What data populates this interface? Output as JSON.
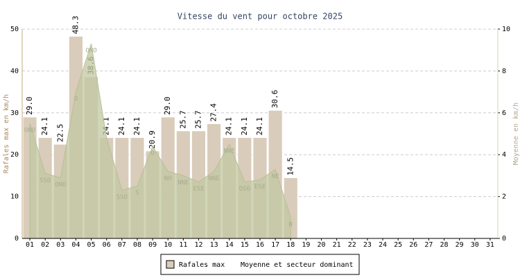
{
  "chart_data": {
    "type": "bar",
    "title": "Vitesse du vent pour octobre 2025",
    "y_label": "Rafales max en km/h",
    "y2_label": "Moyenne en km/h",
    "categories": [
      "01",
      "02",
      "03",
      "04",
      "05",
      "06",
      "07",
      "08",
      "09",
      "10",
      "11",
      "12",
      "13",
      "14",
      "15",
      "16",
      "17",
      "18",
      "19",
      "20",
      "21",
      "22",
      "23",
      "24",
      "25",
      "26",
      "27",
      "28",
      "29",
      "30",
      "31"
    ],
    "series": [
      {
        "name": "Rafales max",
        "color": "#d9ccba",
        "axis": "y",
        "values": [
          29.0,
          24.1,
          22.5,
          48.3,
          38.6,
          24.1,
          24.1,
          24.1,
          20.9,
          29.0,
          25.7,
          25.7,
          27.4,
          24.1,
          24.1,
          24.1,
          30.6,
          14.5,
          null,
          null,
          null,
          null,
          null,
          null,
          null,
          null,
          null,
          null,
          null,
          null,
          null
        ],
        "value_labels": [
          "29.0",
          "24.1",
          "22.5",
          "48.3",
          "38.6",
          "24.1",
          "24.1",
          "24.1",
          "20.9",
          "29.0",
          "25.7",
          "25.7",
          "27.4",
          "24.1",
          "24.1",
          "24.1",
          "30.6",
          "14.5",
          null,
          null,
          null,
          null,
          null,
          null,
          null,
          null,
          null,
          null,
          null,
          null,
          null
        ]
      },
      {
        "name": "Moyenne et secteur dominant",
        "color": "#c2c8a2",
        "axis": "y2",
        "type": "area",
        "values": [
          5.5,
          3.1,
          2.9,
          7.0,
          9.3,
          4.8,
          2.3,
          2.5,
          4.4,
          3.2,
          3.0,
          2.7,
          3.2,
          4.5,
          2.7,
          2.8,
          3.3,
          1.0,
          null,
          null,
          null,
          null,
          null,
          null,
          null,
          null,
          null,
          null,
          null,
          null,
          null
        ],
        "directions": [
          "ONO",
          "SSO",
          "ONO",
          "O",
          "ONO",
          null,
          "SSO",
          "S",
          "O",
          "NO",
          "NNE",
          "ESE",
          "NNE",
          "NNE",
          "OSO",
          "ESE",
          "NE",
          "N",
          null,
          null,
          null,
          null,
          null,
          null,
          null,
          null,
          null,
          null,
          null,
          null,
          null
        ]
      }
    ],
    "ylim": [
      0,
      50
    ],
    "yticks": [
      0,
      10,
      20,
      30,
      40,
      50
    ],
    "y2lim": [
      0,
      10
    ],
    "y2ticks": [
      0,
      2,
      4,
      6,
      8,
      10
    ],
    "grid": true
  }
}
